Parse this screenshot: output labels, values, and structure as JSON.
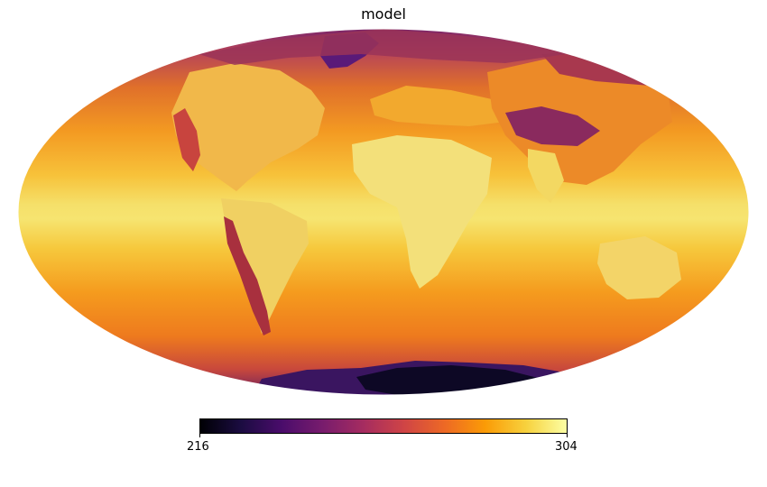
{
  "title": "model",
  "colorbar": {
    "min_label": "216",
    "max_label": "304",
    "colormap": "inferno",
    "stops": [
      "#000004",
      "#1b0c41",
      "#4a0c6b",
      "#781c6d",
      "#a52c60",
      "#cf4446",
      "#ed6925",
      "#fb9b06",
      "#f7d13d",
      "#fcffa4"
    ]
  },
  "map": {
    "projection": "mollweide",
    "colors": {
      "equator": "#f4e46a",
      "tropics": "#f8c848",
      "midlat": "#f59a20",
      "highlat": "#d9651e",
      "polar": "#8a2a5a",
      "land_warm": "#f3e07a",
      "mountain": "#c23f3c",
      "plateau": "#7a2a63",
      "antarctica": "#120a2a",
      "ice_sheet": "#3a1560"
    }
  }
}
